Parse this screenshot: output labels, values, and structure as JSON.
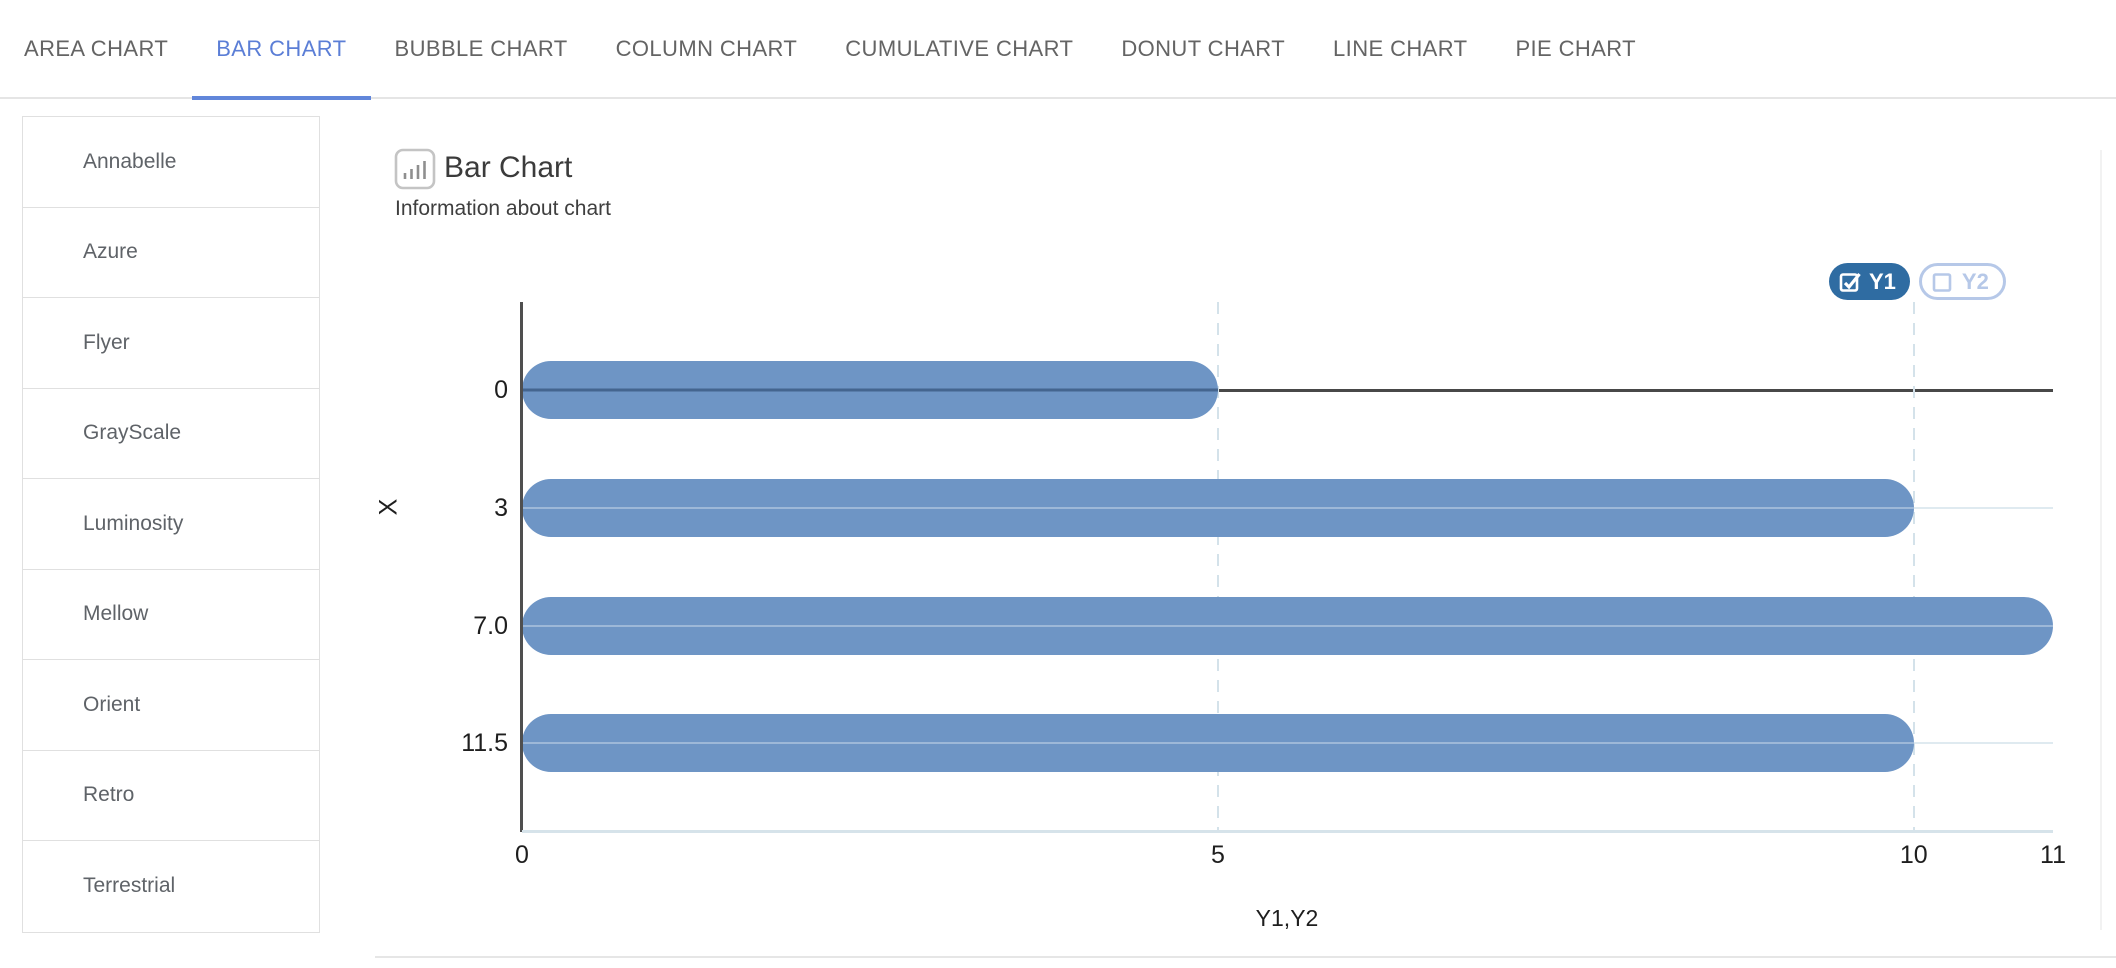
{
  "tabs": {
    "items": [
      {
        "label": "AREA CHART",
        "active": false
      },
      {
        "label": "BAR CHART",
        "active": true
      },
      {
        "label": "BUBBLE CHART",
        "active": false
      },
      {
        "label": "COLUMN CHART",
        "active": false
      },
      {
        "label": "CUMULATIVE CHART",
        "active": false
      },
      {
        "label": "DONUT CHART",
        "active": false
      },
      {
        "label": "LINE CHART",
        "active": false
      },
      {
        "label": "PIE CHART",
        "active": false
      }
    ]
  },
  "sidebar": {
    "items": [
      "Annabelle",
      "Azure",
      "Flyer",
      "GrayScale",
      "Luminosity",
      "Mellow",
      "Orient",
      "Retro",
      "Terrestrial"
    ]
  },
  "header": {
    "title": "Bar Chart",
    "subtitle": "Information about chart",
    "icon": "bar-chart-icon"
  },
  "legend": {
    "items": [
      {
        "label": "Y1",
        "checked": true
      },
      {
        "label": "Y2",
        "checked": false
      }
    ]
  },
  "chart_data": {
    "type": "bar",
    "orientation": "horizontal",
    "title": "Bar Chart",
    "subtitle": "Information about chart",
    "categories": [
      "0",
      "3",
      "7.0",
      "11.5"
    ],
    "series": [
      {
        "name": "Y1",
        "values": [
          5,
          10,
          11,
          10
        ],
        "visible": true
      },
      {
        "name": "Y2",
        "values": null,
        "visible": false
      }
    ],
    "category_axis_label": "X",
    "value_axis_label": "Y1,Y2",
    "value_ticks": [
      0,
      5,
      10,
      11
    ],
    "value_axis_range": [
      0,
      11
    ],
    "grid": {
      "dashed_vertical_at": [
        5,
        10
      ],
      "dark_line_at_category": "0",
      "row_lines": true
    },
    "legend_position": "top-right"
  },
  "colors": {
    "accent_tab": "#5b7ed6",
    "bar": "#6e95c5",
    "bar_zero_stripe": "#44658f",
    "bar_row_stripe": "#9db8d8",
    "legend_on_bg": "#2f6ca2",
    "legend_off": "#b6c8e8",
    "zero_line": "#484848",
    "grid_dashed": "#d4e2ea",
    "row_line": "#dfeaf0",
    "axis_dark": "#4f4f4f",
    "axis_light": "#d6e3ea"
  }
}
